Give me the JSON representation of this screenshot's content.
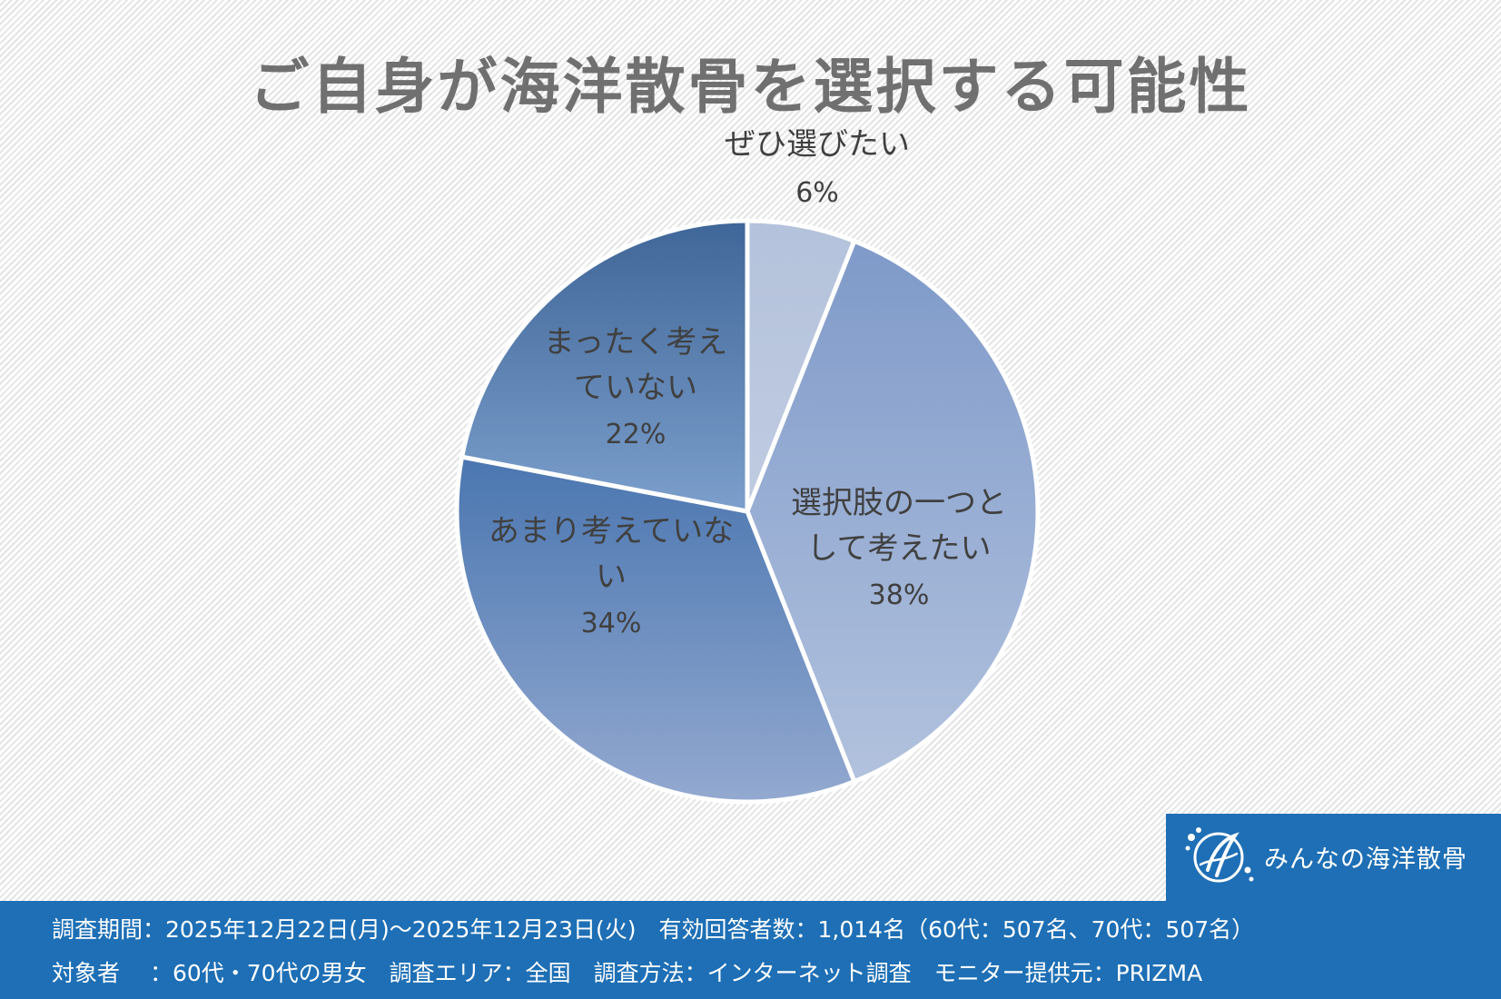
{
  "chart_data": {
    "type": "pie",
    "title": "ご自身が海洋散骨を選択する可能性",
    "slices": [
      {
        "label_lines": [
          "ぜひ選びたい"
        ],
        "value": 6,
        "value_label": "6%",
        "color": "#b5c3dc"
      },
      {
        "label_lines": [
          "選択肢の一つと",
          "して考えたい"
        ],
        "value": 38,
        "value_label": "38%",
        "color": "#8aa2cc"
      },
      {
        "label_lines": [
          "あまり考えていな",
          "い"
        ],
        "value": 34,
        "value_label": "34%",
        "color": "#6d8fbf"
      },
      {
        "label_lines": [
          "まったく考え",
          "ていない"
        ],
        "value": 22,
        "value_label": "22%",
        "color": "#5f7fae"
      }
    ],
    "legend": "none"
  },
  "logo": {
    "text": "みんなの海洋散骨",
    "icon": "wave-circle-icon"
  },
  "footer": {
    "line1": "調査期間：2025年12月22日(月)～2025年12月23日(火)　有効回答者数：1,014名（60代：507名、70代：507名）",
    "line2": "対象者　 ：60代・70代の男女　調査エリア：全国　調査方法：インターネット調査　モニター提供元：PRIZMA"
  },
  "colors": {
    "footer_bg": "#1e6fb5",
    "title": "#707070",
    "label": "#404040"
  }
}
